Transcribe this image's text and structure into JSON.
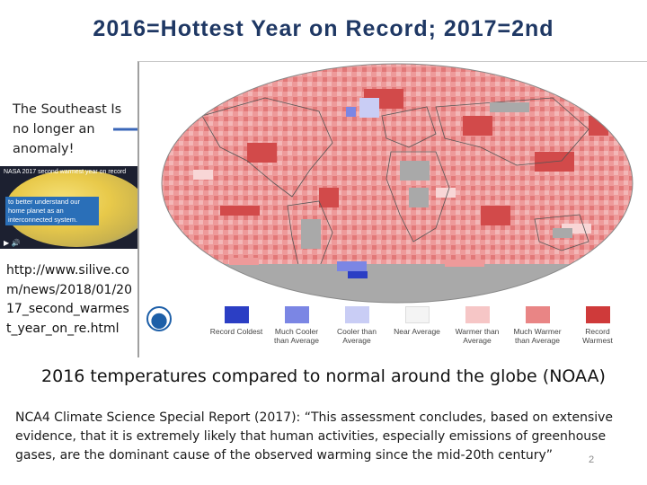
{
  "slide": {
    "title": "2016=Hottest Year on Record; 2017=2nd",
    "note": "The Southeast Is no longer an anomaly!",
    "thumbnail": {
      "caption_top": "NASA 2017 second warmest year on record",
      "caption_box": "to better understand our home planet as an interconnected system.",
      "controls": "▶ 🔊"
    },
    "url": "http://www.silive.com/news/2018/01/2017_second_warmest_year_on_re.html",
    "map_caption": "2016 temperatures compared to normal around the globe (NOAA)",
    "quote": "NCA4 Climate Science Special Report (2017): “This assessment concludes, based on extensive evidence, that it is extremely likely that human activities, especially emissions of greenhouse gases, are the dominant cause of the observed warming since the mid-20th century”",
    "page_number": "2"
  },
  "legend": [
    {
      "label": "Record Coldest",
      "color": "#2b3ec4"
    },
    {
      "label": "Much Cooler than Average",
      "color": "#7b86e4"
    },
    {
      "label": "Cooler than Average",
      "color": "#c9cdf5"
    },
    {
      "label": "Near Average",
      "color": "#f4f4f4"
    },
    {
      "label": "Warmer than Average",
      "color": "#f6c6c6"
    },
    {
      "label": "Much Warmer than Average",
      "color": "#e98585"
    },
    {
      "label": "Record Warmest",
      "color": "#cf3a3a"
    }
  ],
  "colors": {
    "title": "#1f3864",
    "arrow": "#3a66b8",
    "land_nodata": "#a9a9a9",
    "ocean_warm": "#ee9a9a"
  }
}
